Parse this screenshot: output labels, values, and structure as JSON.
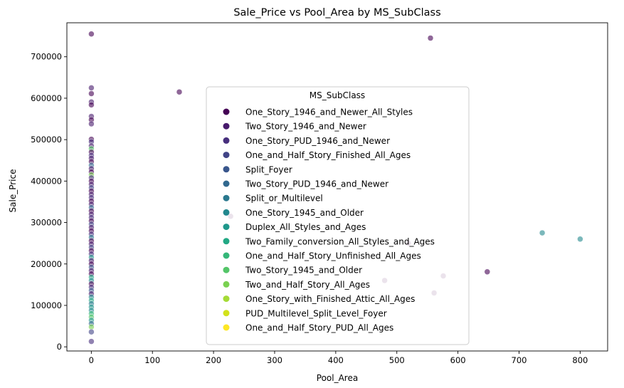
{
  "chart_data": {
    "type": "scatter",
    "title": "Sale_Price vs Pool_Area by MS_SubClass",
    "xlabel": "Pool_Area",
    "ylabel": "Sale_Price",
    "xlim": [
      -40,
      845
    ],
    "ylim": [
      -10000,
      782000
    ],
    "xticks": [
      0,
      100,
      200,
      300,
      400,
      500,
      600,
      700,
      800
    ],
    "yticks": [
      0,
      100000,
      200000,
      300000,
      400000,
      500000,
      600000,
      700000
    ],
    "grid": false,
    "legend": {
      "title": "MS_SubClass",
      "placement": "center",
      "entries": [
        {
          "name": "One_Story_1946_and_Newer_All_Styles",
          "color": "#440154"
        },
        {
          "name": "Two_Story_1946_and_Newer",
          "color": "#481a6c"
        },
        {
          "name": "One_Story_PUD_1946_and_Newer",
          "color": "#472f7d"
        },
        {
          "name": "One_and_Half_Story_Finished_All_Ages",
          "color": "#414487"
        },
        {
          "name": "Split_Foyer",
          "color": "#39568c"
        },
        {
          "name": "Two_Story_PUD_1946_and_Newer",
          "color": "#31688e"
        },
        {
          "name": "Split_or_Multilevel",
          "color": "#2a788e"
        },
        {
          "name": "One_Story_1945_and_Older",
          "color": "#23888e"
        },
        {
          "name": "Duplex_All_Styles_and_Ages",
          "color": "#1f988b"
        },
        {
          "name": "Two_Family_conversion_All_Styles_and_Ages",
          "color": "#22a884"
        },
        {
          "name": "One_and_Half_Story_Unfinished_All_Ages",
          "color": "#35b779"
        },
        {
          "name": "Two_Story_1945_and_Older",
          "color": "#54c568"
        },
        {
          "name": "Two_and_Half_Story_All_Ages",
          "color": "#7ad151"
        },
        {
          "name": "One_Story_with_Finished_Attic_All_Ages",
          "color": "#a5db36"
        },
        {
          "name": "PUD_Multilevel_Split_Level_Foyer",
          "color": "#d2e21b"
        },
        {
          "name": "One_and_Half_Story_PUD_All_Ages",
          "color": "#fde725"
        }
      ]
    },
    "points": [
      {
        "x": 0,
        "y": 755000,
        "c": 0
      },
      {
        "x": 0,
        "y": 625000,
        "c": 1
      },
      {
        "x": 0,
        "y": 611000,
        "c": 0
      },
      {
        "x": 0,
        "y": 591000,
        "c": 1
      },
      {
        "x": 0,
        "y": 584000,
        "c": 0
      },
      {
        "x": 0,
        "y": 556000,
        "c": 1
      },
      {
        "x": 0,
        "y": 548000,
        "c": 0
      },
      {
        "x": 0,
        "y": 538000,
        "c": 1
      },
      {
        "x": 0,
        "y": 501000,
        "c": 0
      },
      {
        "x": 0,
        "y": 495000,
        "c": 2
      },
      {
        "x": 0,
        "y": 485000,
        "c": 1
      },
      {
        "x": 0,
        "y": 478000,
        "c": 11
      },
      {
        "x": 0,
        "y": 470000,
        "c": 0
      },
      {
        "x": 0,
        "y": 462000,
        "c": 2
      },
      {
        "x": 0,
        "y": 455000,
        "c": 1
      },
      {
        "x": 0,
        "y": 447000,
        "c": 0
      },
      {
        "x": 0,
        "y": 438000,
        "c": 5
      },
      {
        "x": 0,
        "y": 430000,
        "c": 1
      },
      {
        "x": 0,
        "y": 422000,
        "c": 0
      },
      {
        "x": 0,
        "y": 415000,
        "c": 12
      },
      {
        "x": 0,
        "y": 408000,
        "c": 2
      },
      {
        "x": 0,
        "y": 400000,
        "c": 0
      },
      {
        "x": 0,
        "y": 392000,
        "c": 1
      },
      {
        "x": 0,
        "y": 384000,
        "c": 3
      },
      {
        "x": 0,
        "y": 376000,
        "c": 0
      },
      {
        "x": 0,
        "y": 368000,
        "c": 1
      },
      {
        "x": 0,
        "y": 360000,
        "c": 2
      },
      {
        "x": 0,
        "y": 352000,
        "c": 0
      },
      {
        "x": 0,
        "y": 344000,
        "c": 1
      },
      {
        "x": 0,
        "y": 336000,
        "c": 5
      },
      {
        "x": 0,
        "y": 328000,
        "c": 0
      },
      {
        "x": 0,
        "y": 320000,
        "c": 1
      },
      {
        "x": 0,
        "y": 312000,
        "c": 2
      },
      {
        "x": 0,
        "y": 304000,
        "c": 0
      },
      {
        "x": 0,
        "y": 296000,
        "c": 3
      },
      {
        "x": 0,
        "y": 288000,
        "c": 1
      },
      {
        "x": 0,
        "y": 280000,
        "c": 0
      },
      {
        "x": 0,
        "y": 272000,
        "c": 2
      },
      {
        "x": 0,
        "y": 264000,
        "c": 6
      },
      {
        "x": 0,
        "y": 256000,
        "c": 0
      },
      {
        "x": 0,
        "y": 248000,
        "c": 1
      },
      {
        "x": 0,
        "y": 240000,
        "c": 3
      },
      {
        "x": 0,
        "y": 232000,
        "c": 0
      },
      {
        "x": 0,
        "y": 224000,
        "c": 2
      },
      {
        "x": 0,
        "y": 216000,
        "c": 8
      },
      {
        "x": 0,
        "y": 208000,
        "c": 1
      },
      {
        "x": 0,
        "y": 200000,
        "c": 0
      },
      {
        "x": 0,
        "y": 192000,
        "c": 4
      },
      {
        "x": 0,
        "y": 184000,
        "c": 1
      },
      {
        "x": 0,
        "y": 176000,
        "c": 0
      },
      {
        "x": 0,
        "y": 168000,
        "c": 9
      },
      {
        "x": 0,
        "y": 160000,
        "c": 7
      },
      {
        "x": 0,
        "y": 152000,
        "c": 0
      },
      {
        "x": 0,
        "y": 144000,
        "c": 2
      },
      {
        "x": 0,
        "y": 136000,
        "c": 4
      },
      {
        "x": 0,
        "y": 128000,
        "c": 1
      },
      {
        "x": 0,
        "y": 120000,
        "c": 7
      },
      {
        "x": 0,
        "y": 112000,
        "c": 9
      },
      {
        "x": 0,
        "y": 104000,
        "c": 6
      },
      {
        "x": 0,
        "y": 96000,
        "c": 8
      },
      {
        "x": 0,
        "y": 88000,
        "c": 7
      },
      {
        "x": 0,
        "y": 80000,
        "c": 10
      },
      {
        "x": 0,
        "y": 72000,
        "c": 11
      },
      {
        "x": 0,
        "y": 64000,
        "c": 8
      },
      {
        "x": 0,
        "y": 56000,
        "c": 5
      },
      {
        "x": 0,
        "y": 48000,
        "c": 12
      },
      {
        "x": 0,
        "y": 36000,
        "c": 3
      },
      {
        "x": 0,
        "y": 13000,
        "c": 2
      },
      {
        "x": 144,
        "y": 615000,
        "c": 0
      },
      {
        "x": 228,
        "y": 315000,
        "c": 0
      },
      {
        "x": 480,
        "y": 160000,
        "c": 0
      },
      {
        "x": 519,
        "y": 250000,
        "c": 0
      },
      {
        "x": 555,
        "y": 745000,
        "c": 0
      },
      {
        "x": 561,
        "y": 130000,
        "c": 0
      },
      {
        "x": 576,
        "y": 171000,
        "c": 0
      },
      {
        "x": 648,
        "y": 181000,
        "c": 0
      },
      {
        "x": 738,
        "y": 275000,
        "c": 7
      },
      {
        "x": 800,
        "y": 260000,
        "c": 7
      }
    ]
  }
}
